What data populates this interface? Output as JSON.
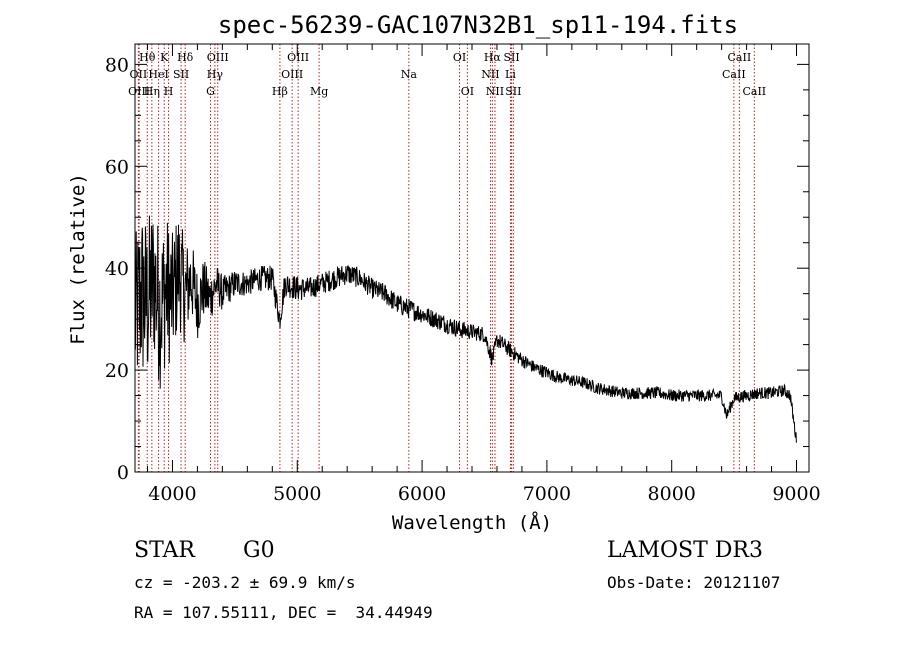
{
  "chart_data": {
    "type": "line",
    "title": "spec-56239-GAC107N32B1_sp11-194.fits",
    "xlabel": "Wavelength (Å)",
    "ylabel": "Flux (relative)",
    "xlim": [
      3700,
      9100
    ],
    "ylim": [
      0,
      84
    ],
    "x_ticks": [
      4000,
      5000,
      6000,
      7000,
      8000,
      9000
    ],
    "y_ticks": [
      0,
      20,
      40,
      60,
      80
    ],
    "series": [
      {
        "name": "flux",
        "x": [
          3700,
          3750,
          3800,
          3850,
          3900,
          3950,
          4000,
          4050,
          4100,
          4150,
          4200,
          4250,
          4300,
          4350,
          4400,
          4450,
          4500,
          4600,
          4700,
          4800,
          4860,
          4900,
          5000,
          5100,
          5200,
          5300,
          5400,
          5500,
          5600,
          5700,
          5800,
          5900,
          6000,
          6100,
          6200,
          6300,
          6400,
          6500,
          6563,
          6600,
          6700,
          6800,
          6900,
          7000,
          7100,
          7200,
          7300,
          7400,
          7500,
          7600,
          7700,
          7800,
          7900,
          8000,
          8100,
          8200,
          8300,
          8400,
          8440,
          8500,
          8600,
          8700,
          8800,
          8900,
          8950,
          9000
        ],
        "y": [
          30,
          35,
          33,
          38,
          32,
          36,
          34,
          40,
          35,
          38,
          33,
          36,
          34,
          37,
          35,
          36,
          37,
          37,
          38,
          38,
          30,
          37,
          36,
          36,
          37,
          38,
          39,
          38,
          36,
          35,
          33,
          32,
          31,
          30,
          29,
          28,
          27.5,
          27,
          22,
          26,
          24,
          22,
          20.5,
          19.5,
          18.5,
          18,
          17.5,
          16.5,
          16,
          15.5,
          15.5,
          15.5,
          15.5,
          15,
          15,
          15,
          15,
          15,
          11,
          14.5,
          15,
          15.5,
          15.5,
          16,
          15,
          6
        ],
        "noise": [
          16,
          18,
          17,
          16,
          16,
          15,
          13,
          12,
          10,
          8,
          7,
          6,
          5,
          4,
          3.5,
          3,
          2.8,
          2.5,
          2.5,
          2.5,
          2.5,
          2.5,
          2.5,
          2.2,
          2.2,
          2.2,
          2.2,
          2,
          2,
          2,
          2,
          2,
          1.8,
          1.8,
          1.8,
          1.8,
          1.6,
          1.6,
          1.6,
          1.6,
          1.5,
          1.4,
          1.3,
          1.3,
          1.2,
          1.2,
          1.2,
          1.2,
          1.2,
          1.2,
          1.2,
          1.2,
          1.2,
          1.2,
          1.2,
          1.2,
          1.2,
          1.2,
          1.2,
          1.2,
          1.2,
          1.2,
          1.2,
          1.2,
          1.2,
          1.2
        ]
      }
    ],
    "lines": [
      {
        "label": "Hθ",
        "x": 3798,
        "row": 0
      },
      {
        "label": "OII",
        "x": 3727,
        "row": 1
      },
      {
        "label": "OIII",
        "x": 3733,
        "row": 2
      },
      {
        "label": "Hη",
        "x": 3835,
        "row": 2
      },
      {
        "label": "HeI",
        "x": 3889,
        "row": 1
      },
      {
        "label": "K",
        "x": 3934,
        "row": 0
      },
      {
        "label": "H",
        "x": 3969,
        "row": 2
      },
      {
        "label": "SII",
        "x": 4069,
        "row": 1
      },
      {
        "label": "Hδ",
        "x": 4102,
        "row": 0
      },
      {
        "label": "OIII",
        "x": 4363,
        "row": 0
      },
      {
        "label": "Hγ",
        "x": 4340,
        "row": 1
      },
      {
        "label": "G",
        "x": 4305,
        "row": 2
      },
      {
        "label": "Hβ",
        "x": 4861,
        "row": 2
      },
      {
        "label": "OIII",
        "x": 5007,
        "row": 0
      },
      {
        "label": "OIII",
        "x": 4959,
        "row": 1
      },
      {
        "label": "Mg",
        "x": 5175,
        "row": 2
      },
      {
        "label": "Na",
        "x": 5894,
        "row": 1
      },
      {
        "label": "OI",
        "x": 6300,
        "row": 0
      },
      {
        "label": "OI",
        "x": 6363,
        "row": 2
      },
      {
        "label": "Hα",
        "x": 6563,
        "row": 0
      },
      {
        "label": "NII",
        "x": 6548,
        "row": 1
      },
      {
        "label": "NII",
        "x": 6584,
        "row": 2
      },
      {
        "label": "SII",
        "x": 6717,
        "row": 0
      },
      {
        "label": "Li",
        "x": 6708,
        "row": 1
      },
      {
        "label": "SII",
        "x": 6731,
        "row": 2
      },
      {
        "label": "CaII",
        "x": 8542,
        "row": 0
      },
      {
        "label": "CaII",
        "x": 8498,
        "row": 1
      },
      {
        "label": "CaII",
        "x": 8662,
        "row": 2
      }
    ]
  },
  "info": {
    "class": "STAR",
    "subclass": "G0",
    "survey": "LAMOST DR3",
    "cz": "cz = -203.2 ± 69.9 km/s",
    "obs_date": "Obs-Date: 20121107",
    "coords": "RA = 107.55111, DEC =  34.44949"
  }
}
